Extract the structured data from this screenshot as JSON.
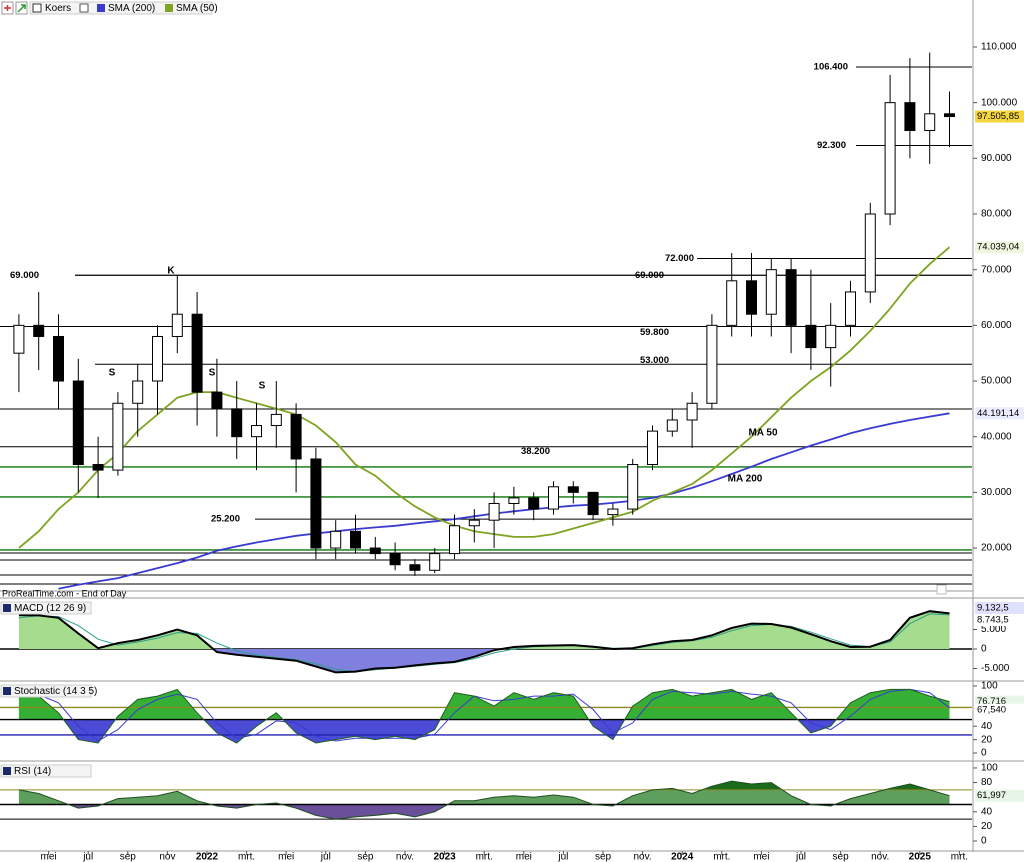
{
  "source": "ProRealTime.com - End of Day",
  "chart_data": [
    {
      "type": "candlestick",
      "name": "Koers",
      "categories": [
        null,
        null,
        "mei",
        null,
        "jul",
        null,
        "sep",
        null,
        "nov",
        null,
        "2022",
        null,
        "mrt.",
        null,
        "mei",
        null,
        "jul",
        null,
        "sep",
        null,
        "nov.",
        null,
        "2023",
        null,
        "mrt.",
        null,
        "mei",
        null,
        "jul",
        null,
        "sep",
        null,
        "nov.",
        null,
        "2024",
        null,
        "mrt.",
        null,
        "mei",
        null,
        "jul",
        null,
        "sep",
        null,
        "nov.",
        null,
        "2025",
        null,
        "mrt."
      ],
      "open": [
        55000,
        60000,
        58000,
        50000,
        35000,
        34000,
        46000,
        50000,
        58000,
        62000,
        48000,
        45000,
        40000,
        42000,
        44000,
        36000,
        20000,
        23000,
        20000,
        19000,
        17000,
        16000,
        19000,
        24000,
        25000,
        28000,
        29000,
        27000,
        31000,
        30000,
        26000,
        27000,
        35000,
        41000,
        43000,
        46000,
        60000,
        68000,
        62000,
        70000,
        60000,
        56000,
        60000,
        66000,
        80000,
        100000,
        95000,
        98000,
        null
      ],
      "high": [
        62000,
        66000,
        62000,
        54000,
        40000,
        48000,
        53000,
        60000,
        69000,
        66000,
        54000,
        50000,
        46000,
        50000,
        46000,
        38000,
        25000,
        26000,
        22000,
        21000,
        18000,
        20000,
        26000,
        27000,
        30000,
        31000,
        30000,
        32000,
        32000,
        30000,
        28000,
        36000,
        42000,
        45000,
        48000,
        62000,
        73000,
        73000,
        72000,
        72000,
        70000,
        64000,
        68000,
        82000,
        105000,
        108000,
        109000,
        102000,
        null
      ],
      "low": [
        48000,
        52000,
        45000,
        30000,
        29000,
        33000,
        40000,
        44000,
        55000,
        42000,
        40000,
        36000,
        34000,
        38000,
        30000,
        18000,
        18000,
        19000,
        18000,
        16000,
        15000,
        15500,
        18000,
        21000,
        20000,
        26000,
        25000,
        26000,
        28000,
        25000,
        24000,
        26000,
        34000,
        40000,
        38000,
        45000,
        58000,
        58000,
        58000,
        55000,
        52000,
        49000,
        58000,
        64000,
        78000,
        90000,
        89000,
        92000,
        null
      ],
      "close": [
        60000,
        58000,
        50000,
        35000,
        34000,
        46000,
        50000,
        58000,
        62000,
        48000,
        45000,
        40000,
        42000,
        44000,
        36000,
        20000,
        23000,
        20000,
        19000,
        17000,
        16000,
        19000,
        24000,
        25000,
        28000,
        29000,
        27000,
        31000,
        30000,
        26000,
        27000,
        35000,
        41000,
        43000,
        46000,
        60000,
        68000,
        62000,
        70000,
        60000,
        56000,
        60000,
        66000,
        80000,
        100000,
        95000,
        98000,
        97505.85,
        null
      ],
      "close_label": "97.505,85",
      "series": [
        {
          "name": "SMA (200)",
          "color": "#3a3ad0",
          "last_label": "44.191,14",
          "values": [
            null,
            null,
            12700,
            13400,
            14000,
            14600,
            15500,
            16400,
            17300,
            18300,
            19500,
            20300,
            21000,
            21600,
            22200,
            22600,
            23000,
            23400,
            23700,
            24000,
            24400,
            24800,
            25200,
            25700,
            26200,
            26600,
            27000,
            27300,
            27600,
            27800,
            28100,
            28500,
            29000,
            29800,
            30800,
            32000,
            33300,
            34600,
            36000,
            37200,
            38400,
            39500,
            40600,
            41500,
            42300,
            43000,
            43600,
            44191.14,
            null
          ]
        },
        {
          "name": "SMA (50)",
          "color": "#7ea421",
          "last_label": "74.039,04",
          "values": [
            20000,
            23000,
            27000,
            30000,
            34000,
            37000,
            41000,
            44000,
            47000,
            48000,
            48000,
            47000,
            46000,
            45000,
            44000,
            42000,
            39000,
            35000,
            33000,
            30000,
            27500,
            25500,
            24000,
            23000,
            22500,
            22000,
            22000,
            22500,
            23500,
            24500,
            25500,
            26500,
            28500,
            30000,
            31500,
            34000,
            37000,
            40000,
            43500,
            47000,
            50000,
            52500,
            55500,
            59000,
            63000,
            67500,
            71000,
            74039.04,
            null
          ]
        }
      ],
      "ylim": [
        12460,
        118440
      ],
      "yticks": [
        {
          "value": 20000,
          "label": "20.000"
        },
        {
          "value": 30000,
          "label": "30.000"
        },
        {
          "value": 40000,
          "label": "40.000"
        },
        {
          "value": 50000,
          "label": "50.000"
        },
        {
          "value": 60000,
          "label": "60.000"
        },
        {
          "value": 70000,
          "label": "70.000"
        },
        {
          "value": 80000,
          "label": "80.000"
        },
        {
          "value": 90000,
          "label": "90.000"
        },
        {
          "value": 100000,
          "label": "100.000"
        },
        {
          "value": 110000,
          "label": "110.000"
        }
      ],
      "levels": [
        {
          "value": 106400,
          "label": "106.400"
        },
        {
          "value": 92300,
          "label": "92.300"
        },
        {
          "value": 72000,
          "label": "72.000"
        },
        {
          "value": 69000,
          "label": "69.000"
        },
        {
          "value": 69000,
          "label": "69.000"
        },
        {
          "value": 59800,
          "label": "59.800"
        },
        {
          "value": 53000,
          "label": "53.000"
        },
        {
          "value": 38200,
          "label": "38.200"
        },
        {
          "value": 25200,
          "label": "25.200"
        }
      ],
      "support_lines": [
        {
          "value": 44970,
          "color": "#000000"
        },
        {
          "value": 34570,
          "color": "#2e8b2e"
        },
        {
          "value": 29170,
          "color": "#2e8b2e"
        },
        {
          "value": 19650,
          "color": "#2e8b2e"
        },
        {
          "value": 19110,
          "color": "#000000"
        },
        {
          "value": 17850,
          "color": "#000000"
        },
        {
          "value": 15160,
          "color": "#000000"
        },
        {
          "value": 13540,
          "color": "#000000"
        }
      ],
      "annotations": [
        "K",
        "S",
        "S",
        "S",
        "MA 50",
        "MA 200"
      ]
    },
    {
      "type": "macd",
      "series": [
        {
          "name": "MACD (12 26 9)",
          "color": "#000000",
          "last_label": "9.132,5",
          "values": [
            8700,
            8600,
            8000,
            4000,
            200,
            1500,
            2300,
            3500,
            5000,
            3500,
            -800,
            -1500,
            -2000,
            -2500,
            -3000,
            -4500,
            -6000,
            -5800,
            -5000,
            -4800,
            -4200,
            -3700,
            -3300,
            -2000,
            -300,
            500,
            800,
            900,
            1000,
            600,
            0,
            200,
            1200,
            2000,
            2300,
            3500,
            5400,
            6500,
            6400,
            5500,
            3800,
            2000,
            500,
            600,
            2300,
            8000,
            9700,
            9132.5,
            null
          ]
        },
        {
          "color": "#2aa08a",
          "last_label": "8.743,5",
          "values": [
            8000,
            8500,
            8300,
            6000,
            2500,
            1000,
            1800,
            2800,
            4200,
            4000,
            1500,
            -500,
            -1500,
            -2200,
            -2700,
            -3800,
            -5200,
            -5800,
            -5300,
            -4900,
            -4400,
            -3900,
            -3500,
            -2500,
            -1000,
            0,
            600,
            800,
            900,
            700,
            200,
            100,
            900,
            1700,
            2100,
            3000,
            4700,
            6000,
            6300,
            5800,
            4300,
            2600,
            1000,
            600,
            1800,
            6500,
            9000,
            8743.5,
            null
          ]
        }
      ],
      "ylim": [
        -7950,
        12560
      ],
      "yticks": [
        {
          "value": 5000,
          "label": "5.000"
        },
        0,
        {
          "value": -5000,
          "label": "-5.000"
        }
      ]
    },
    {
      "type": "stochastic",
      "series": [
        {
          "name": "Stochastic (14 3 5)",
          "color": "#1f5f1f",
          "last_label": "76,716",
          "values": [
            90,
            85,
            60,
            20,
            15,
            55,
            80,
            85,
            95,
            60,
            30,
            15,
            40,
            60,
            30,
            15,
            20,
            25,
            20,
            25,
            20,
            35,
            90,
            85,
            70,
            90,
            80,
            90,
            85,
            40,
            20,
            70,
            90,
            95,
            85,
            90,
            95,
            80,
            90,
            60,
            30,
            40,
            75,
            90,
            95,
            95,
            85,
            76.716,
            null
          ]
        },
        {
          "color": "#3a3ad0",
          "last_label": "67,540",
          "values": [
            88,
            87,
            75,
            40,
            18,
            35,
            65,
            80,
            88,
            80,
            45,
            22,
            28,
            48,
            45,
            25,
            18,
            22,
            22,
            22,
            22,
            28,
            60,
            85,
            78,
            80,
            85,
            85,
            88,
            65,
            30,
            45,
            80,
            92,
            90,
            88,
            92,
            88,
            85,
            75,
            45,
            35,
            55,
            80,
            92,
            95,
            90,
            67.54,
            null
          ]
        }
      ],
      "ylim": [
        -10.4,
        104.5
      ],
      "yticks": [
        100,
        40,
        20,
        0
      ],
      "lines": [
        68,
        50,
        27
      ]
    },
    {
      "type": "rsi",
      "series": [
        {
          "name": "RSI (14)",
          "color": "#1f4f1f",
          "last_label": "61,997",
          "values": [
            70,
            65,
            55,
            45,
            48,
            58,
            60,
            62,
            68,
            55,
            48,
            45,
            50,
            52,
            45,
            35,
            30,
            33,
            35,
            38,
            33,
            40,
            55,
            55,
            60,
            62,
            60,
            63,
            60,
            50,
            48,
            62,
            70,
            72,
            65,
            75,
            82,
            78,
            80,
            62,
            50,
            48,
            58,
            65,
            72,
            78,
            70,
            61.997,
            null
          ]
        }
      ],
      "ylim": [
        -12.3,
        106.8
      ],
      "yticks": [
        100,
        80,
        40,
        20,
        0
      ],
      "lines": [
        70,
        50,
        30
      ]
    }
  ]
}
